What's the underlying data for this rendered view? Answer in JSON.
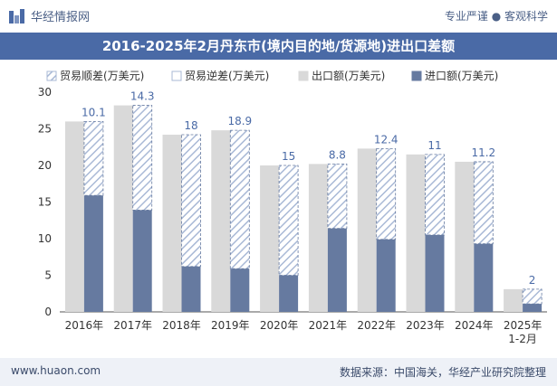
{
  "header": {
    "brand": "华经情报网",
    "tagline": "专业严谨 ● 客观科学"
  },
  "footer": {
    "url": "www.huaon.com",
    "source": "数据来源：中国海关，华经产业研究院整理"
  },
  "colors": {
    "export": "#d9d9d9",
    "import": "#667aa0",
    "surplus_hatch": "#a9b9d6",
    "title_bg": "#4a6aa6"
  },
  "chart_data": {
    "type": "bar",
    "title": "2016-2025年2月丹东市(境内目的地/货源地)进出口差额",
    "categories": [
      "2016年",
      "2017年",
      "2018年",
      "2019年",
      "2020年",
      "2021年",
      "2022年",
      "2023年",
      "2024年",
      "2025年 1-2月"
    ],
    "ylim": [
      0,
      30
    ],
    "yticks": [
      0,
      5,
      10,
      15,
      20,
      25,
      30
    ],
    "legend_position": "top",
    "series": [
      {
        "name": "贸易顺差(万美元)",
        "values": [
          10.1,
          14.3,
          18,
          18.9,
          15,
          8.8,
          12.4,
          11,
          11.2,
          2
        ]
      },
      {
        "name": "贸易逆差(万美元)",
        "values": [
          null,
          null,
          null,
          null,
          null,
          null,
          null,
          null,
          null,
          null
        ]
      },
      {
        "name": "出口额(万美元)",
        "values": [
          26.0,
          28.2,
          24.2,
          24.8,
          20.0,
          20.2,
          22.3,
          21.5,
          20.5,
          3.1
        ]
      },
      {
        "name": "进口额(万美元)",
        "values": [
          15.9,
          13.9,
          6.2,
          5.9,
          5.0,
          11.4,
          9.9,
          10.5,
          9.3,
          1.1
        ]
      }
    ],
    "data_labels": [
      "10.1",
      "14.3",
      "18",
      "18.9",
      "15",
      "8.8",
      "12.4",
      "11",
      "11.2",
      "2"
    ]
  }
}
